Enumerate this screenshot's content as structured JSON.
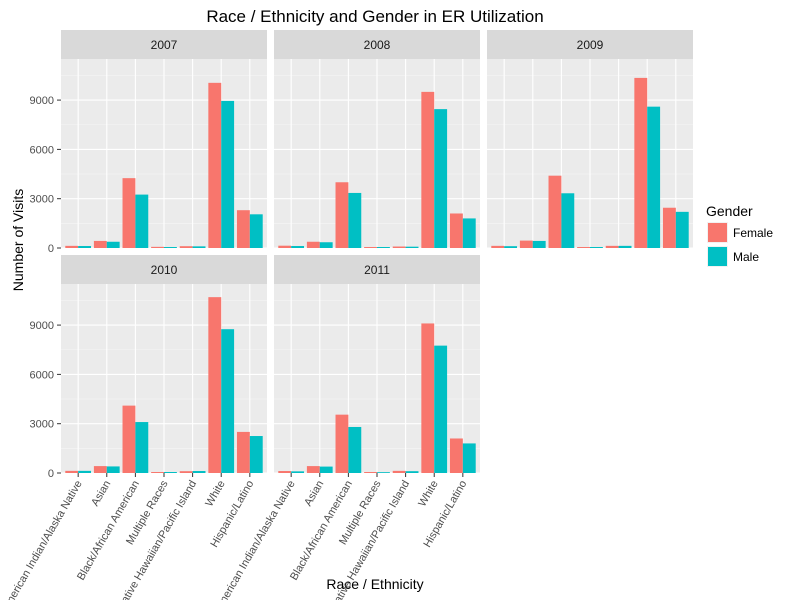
{
  "chart_data": {
    "type": "bar",
    "title": "Race / Ethnicity and Gender in ER Utilization",
    "xlabel": "Race / Ethnicity",
    "ylabel": "Number of Visits",
    "ylim": [
      0,
      11500
    ],
    "yticks": [
      0,
      3000,
      6000,
      9000
    ],
    "ytick_labels": [
      "0",
      "3000",
      "6000",
      "9000"
    ],
    "grid": true,
    "legend": {
      "title": "Gender",
      "position": "right",
      "entries": [
        {
          "name": "Female",
          "color": "#F8766D"
        },
        {
          "name": "Male",
          "color": "#00BFC4"
        }
      ]
    },
    "categories": [
      "American Indian/Alaska Native",
      "Asian",
      "Black/African American",
      "Multiple Races",
      "Native Hawaiian/Pacific Island",
      "White",
      "Hispanic/Latino"
    ],
    "panels": [
      {
        "label": "2007",
        "series": [
          {
            "name": "Female",
            "values": [
              130,
              430,
              4250,
              70,
              110,
              10050,
              2300
            ]
          },
          {
            "name": "Male",
            "values": [
              120,
              380,
              3250,
              60,
              100,
              8950,
              2050
            ]
          }
        ]
      },
      {
        "label": "2008",
        "series": [
          {
            "name": "Female",
            "values": [
              140,
              380,
              4000,
              60,
              90,
              9500,
              2100
            ]
          },
          {
            "name": "Male",
            "values": [
              120,
              350,
              3350,
              60,
              80,
              8450,
              1800
            ]
          }
        ]
      },
      {
        "label": "2009",
        "series": [
          {
            "name": "Female",
            "values": [
              130,
              450,
              4400,
              60,
              130,
              10350,
              2450
            ]
          },
          {
            "name": "Male",
            "values": [
              110,
              430,
              3330,
              60,
              130,
              8600,
              2200
            ]
          }
        ]
      },
      {
        "label": "2010",
        "series": [
          {
            "name": "Female",
            "values": [
              130,
              420,
              4100,
              60,
              110,
              10700,
              2500
            ]
          },
          {
            "name": "Male",
            "values": [
              130,
              400,
              3100,
              60,
              120,
              8750,
              2250
            ]
          }
        ]
      },
      {
        "label": "2011",
        "series": [
          {
            "name": "Female",
            "values": [
              120,
              420,
              3550,
              60,
              130,
              9100,
              2100
            ]
          },
          {
            "name": "Male",
            "values": [
              100,
              390,
              2800,
              50,
              110,
              7750,
              1800
            ]
          }
        ]
      }
    ]
  }
}
